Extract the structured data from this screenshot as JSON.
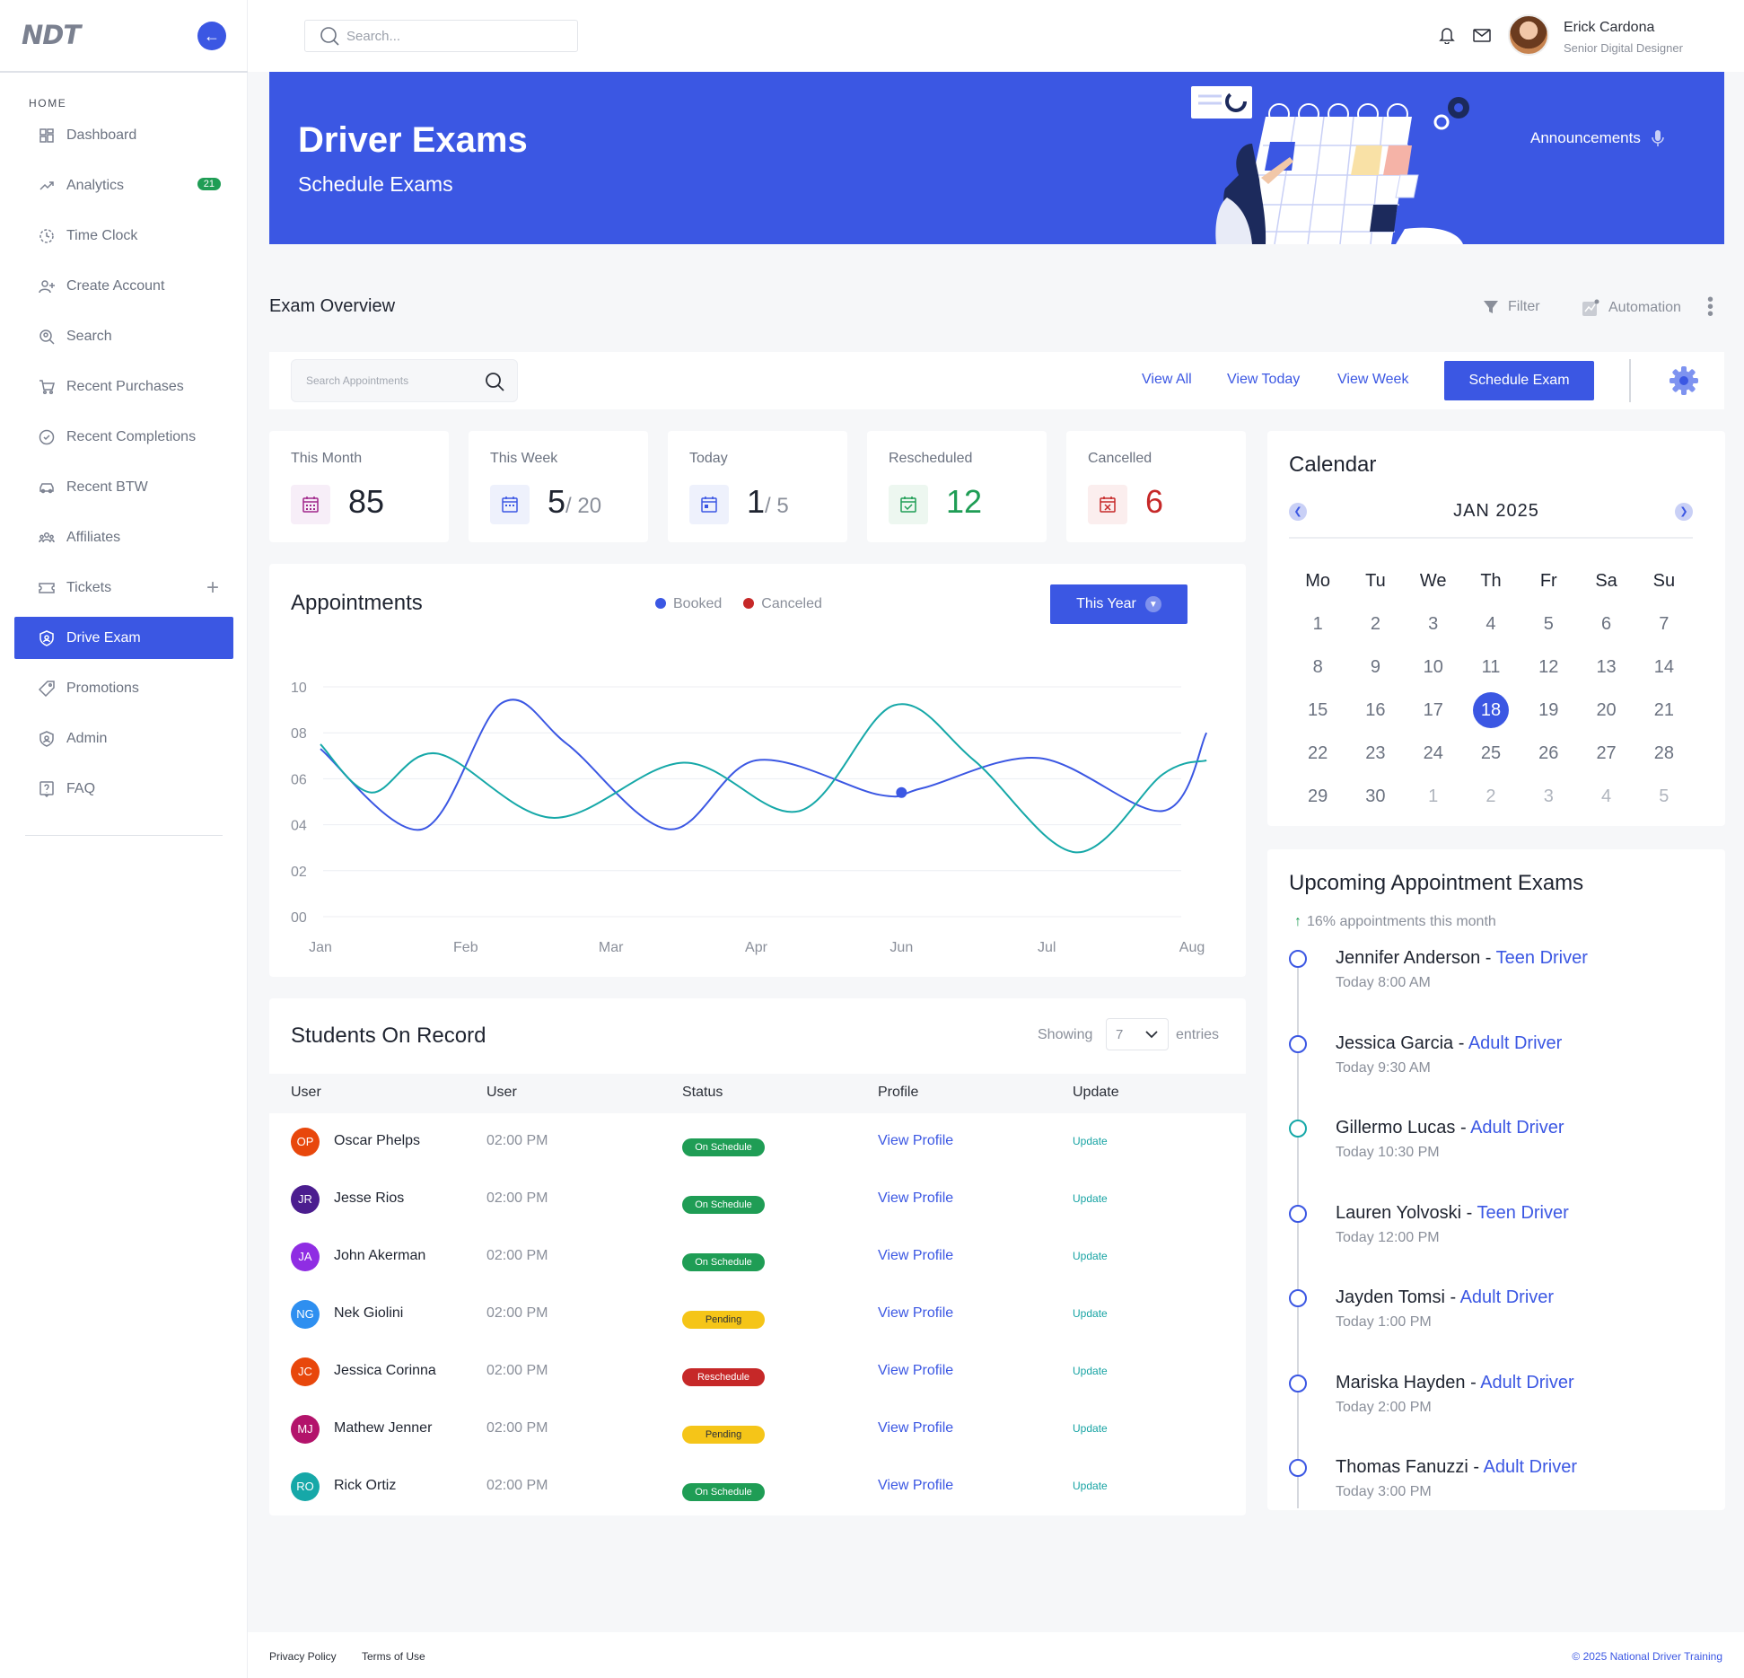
{
  "logo": "NDT",
  "sidebar": {
    "section": "HOME",
    "items": [
      {
        "label": "Dashboard"
      },
      {
        "label": "Analytics",
        "badge": "21"
      },
      {
        "label": "Time Clock"
      },
      {
        "label": "Create Account"
      },
      {
        "label": "Search"
      },
      {
        "label": "Recent Purchases"
      },
      {
        "label": "Recent Completions"
      },
      {
        "label": "Recent BTW"
      },
      {
        "label": "Affiliates"
      },
      {
        "label": "Tickets"
      },
      {
        "label": "Drive Exam"
      },
      {
        "label": "Promotions"
      },
      {
        "label": "Admin"
      },
      {
        "label": "FAQ"
      }
    ]
  },
  "topbar": {
    "search_placeholder": "Search...",
    "user_name": "Erick Cardona",
    "user_role": "Senior Digital Designer"
  },
  "hero": {
    "title": "Driver Exams",
    "subtitle": "Schedule Exams",
    "announcements": "Announcements"
  },
  "overview": {
    "title": "Exam Overview",
    "filter": "Filter",
    "automation": "Automation"
  },
  "toolbar": {
    "search_placeholder": "Search Appointments",
    "view_all": "View All",
    "view_today": "View Today",
    "view_week": "View Week",
    "schedule": "Schedule Exam"
  },
  "stats": {
    "month": {
      "label": "This Month",
      "value": "85"
    },
    "week": {
      "label": "This Week",
      "value": "5",
      "of": "/ 20"
    },
    "today": {
      "label": "Today",
      "value": "1",
      "of": "/ 5"
    },
    "rescheduled": {
      "label": "Rescheduled",
      "value": "12"
    },
    "cancelled": {
      "label": "Cancelled",
      "value": "6"
    }
  },
  "colors": {
    "accent": "#3b57e3",
    "booked": "#3b57e3",
    "canceled": "#c62828",
    "teal": "#16a8a8",
    "green": "#1f9d55"
  },
  "chart_data": {
    "type": "line",
    "title": "Appointments",
    "range_button": "This Year",
    "categories": [
      "Jan",
      "Feb",
      "Mar",
      "Apr",
      "Jun",
      "Jul",
      "Aug"
    ],
    "y_ticks": [
      "00",
      "02",
      "04",
      "06",
      "08",
      "10"
    ],
    "ylim": [
      0,
      10
    ],
    "legend": [
      "Booked",
      "Canceled"
    ],
    "legend_position": "top-center",
    "grid": true,
    "series": [
      {
        "name": "Booked",
        "color": "#3b57e3",
        "x": [
          0,
          0.7,
          1.25,
          1.7,
          2.4,
          3.0,
          3.85,
          4.15,
          4.95,
          5.8,
          6.1
        ],
        "values": [
          7.3,
          3.8,
          9.3,
          7.5,
          3.8,
          6.8,
          5.3,
          5.6,
          6.9,
          4.6,
          8.0
        ]
      },
      {
        "name": "",
        "color": "#16a8a8",
        "x": [
          0,
          0.35,
          0.8,
          1.6,
          2.5,
          3.3,
          3.95,
          4.5,
          5.2,
          5.8,
          6.1
        ],
        "values": [
          7.5,
          5.4,
          7.1,
          4.3,
          6.7,
          4.6,
          9.2,
          6.8,
          2.8,
          6.2,
          6.8
        ]
      }
    ],
    "marker": {
      "x": 4.0,
      "value": 5.4
    }
  },
  "calendar": {
    "title": "Calendar",
    "month": "JAN  2025",
    "weekdays": [
      "Mo",
      "Tu",
      "We",
      "Th",
      "Fr",
      "Sa",
      "Su"
    ],
    "days": [
      "1",
      "2",
      "3",
      "4",
      "5",
      "6",
      "7",
      "8",
      "9",
      "10",
      "11",
      "12",
      "13",
      "14",
      "15",
      "16",
      "17",
      "18",
      "19",
      "20",
      "21",
      "22",
      "23",
      "24",
      "25",
      "26",
      "27",
      "28",
      "29",
      "30",
      "1",
      "2",
      "3",
      "4",
      "5"
    ],
    "selected": "18"
  },
  "upcoming": {
    "title": "Upcoming Appointment Exams",
    "subtitle": "16% appointments this month",
    "items": [
      {
        "name": "Jennifer Anderson",
        "type": "Teen Driver",
        "time": "Today 8:00 AM"
      },
      {
        "name": "Jessica Garcia",
        "type": "Adult Driver",
        "time": "Today 9:30 AM"
      },
      {
        "name": "Gillermo Lucas",
        "type": "Adult Driver",
        "time": "Today 10:30 PM"
      },
      {
        "name": "Lauren Yolvoski",
        "type": "Teen Driver",
        "time": "Today 12:00 PM"
      },
      {
        "name": "Jayden Tomsi",
        "type": "Adult Driver",
        "time": "Today 1:00 PM"
      },
      {
        "name": "Mariska Hayden",
        "type": "Adult Driver",
        "time": "Today 2:00 PM"
      },
      {
        "name": "Thomas Fanuzzi",
        "type": "Adult Driver",
        "time": "Today 3:00 PM"
      }
    ]
  },
  "students": {
    "title": "Students On Record",
    "showing": "Showing",
    "entries_value": "7",
    "entries": "entries",
    "headers": [
      "User",
      "User",
      "Status",
      "Profile",
      "Update"
    ],
    "view_profile": "View Profile",
    "update": "Update",
    "rows": [
      {
        "initials": "OP",
        "name": "Oscar Phelps",
        "time": "02:00 PM",
        "status": "On Schedule",
        "color": "#e8470c"
      },
      {
        "initials": "JR",
        "name": "Jesse Rios",
        "time": "02:00 PM",
        "status": "On Schedule",
        "color": "#4b1d8f"
      },
      {
        "initials": "JA",
        "name": "John Akerman",
        "time": "02:00 PM",
        "status": "On Schedule",
        "color": "#8f2de3"
      },
      {
        "initials": "NG",
        "name": "Nek Giolini",
        "time": "02:00 PM",
        "status": "Pending",
        "color": "#2e8ff0"
      },
      {
        "initials": "JC",
        "name": "Jessica Corinna",
        "time": "02:00 PM",
        "status": "Reschedule",
        "color": "#e8470c"
      },
      {
        "initials": "MJ",
        "name": "Mathew Jenner",
        "time": "02:00 PM",
        "status": "Pending",
        "color": "#b3136b"
      },
      {
        "initials": "RO",
        "name": "Rick Ortiz",
        "time": "02:00 PM",
        "status": "On Schedule",
        "color": "#16a8a8"
      }
    ]
  },
  "footer": {
    "privacy": "Privacy Policy",
    "terms": "Terms of Use",
    "copyright": "2025 National Driver Training"
  }
}
